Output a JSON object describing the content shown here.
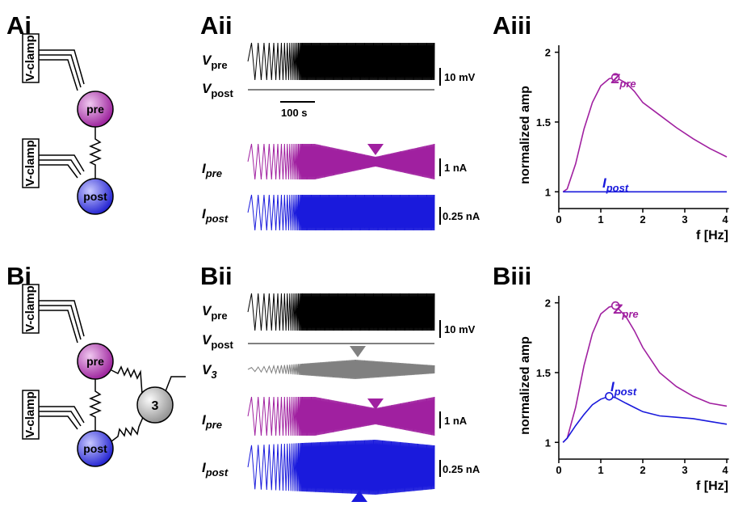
{
  "panel_labels": [
    "Ai",
    "Aii",
    "Aiii",
    "Bi",
    "Bii",
    "Biii"
  ],
  "diagram_a": {
    "clamps": [
      "V-clamp",
      "V-clamp"
    ],
    "cells": [
      "pre",
      "post"
    ]
  },
  "diagram_b": {
    "clamps": [
      "V-clamp",
      "V-clamp"
    ],
    "cells": [
      "pre",
      "post",
      "3"
    ]
  },
  "traces_a": {
    "labels": [
      {
        "symbol": "V",
        "sub": "pre"
      },
      {
        "symbol": "V",
        "sub": "post"
      },
      {
        "symbol": "I",
        "sub": "pre"
      },
      {
        "symbol": "I",
        "sub": "post"
      }
    ],
    "scale_bars": [
      "10 mV",
      "100 s",
      "1 nA",
      "0.25 nA"
    ]
  },
  "traces_b": {
    "labels": [
      {
        "symbol": "V",
        "sub": "pre"
      },
      {
        "symbol": "V",
        "sub": "post"
      },
      {
        "symbol": "V",
        "sub": "3"
      },
      {
        "symbol": "I",
        "sub": "pre"
      },
      {
        "symbol": "I",
        "sub": "post"
      }
    ],
    "scale_bars": [
      "10 mV",
      "1 nA",
      "0.25 nA"
    ]
  },
  "chart_data": [
    {
      "type": "line",
      "ylabel": "normalized amp",
      "xlabel": "f [Hz]",
      "x": [
        0.1,
        0.2,
        0.4,
        0.6,
        0.8,
        1.0,
        1.2,
        1.35,
        1.6,
        1.8,
        2.0,
        2.4,
        2.8,
        3.2,
        3.6,
        4.0
      ],
      "series": [
        {
          "name": "Z",
          "subscript": "pre",
          "color": "#a020a0",
          "values": [
            1,
            1.02,
            1.2,
            1.45,
            1.64,
            1.76,
            1.81,
            1.82,
            1.78,
            1.72,
            1.64,
            1.55,
            1.46,
            1.38,
            1.31,
            1.25
          ],
          "peak_index": 7
        },
        {
          "name": "I",
          "subscript": "post",
          "color": "#1a1adc",
          "values": [
            1,
            1,
            1,
            1,
            1,
            1,
            1,
            1,
            1,
            1,
            1,
            1,
            1,
            1,
            1,
            1
          ]
        }
      ],
      "xlim": [
        0,
        4.05
      ],
      "ylim": [
        0.88,
        2.05
      ],
      "xticks": [
        0,
        1,
        2,
        3,
        4
      ],
      "yticks": [
        1,
        1.5,
        2
      ]
    },
    {
      "type": "line",
      "ylabel": "normalized amp",
      "xlabel": "f [Hz]",
      "x": [
        0.1,
        0.2,
        0.4,
        0.6,
        0.8,
        1.0,
        1.2,
        1.35,
        1.6,
        1.8,
        2.0,
        2.4,
        2.8,
        3.2,
        3.6,
        4.0
      ],
      "series": [
        {
          "name": "Z",
          "subscript": "pre",
          "color": "#a020a0",
          "values": [
            1,
            1.03,
            1.25,
            1.55,
            1.78,
            1.92,
            1.97,
            1.98,
            1.9,
            1.8,
            1.68,
            1.5,
            1.4,
            1.33,
            1.28,
            1.26
          ],
          "peak_index": 7
        },
        {
          "name": "I",
          "subscript": "post",
          "color": "#1a1adc",
          "values": [
            1,
            1.03,
            1.12,
            1.2,
            1.27,
            1.31,
            1.33,
            1.32,
            1.28,
            1.25,
            1.22,
            1.19,
            1.18,
            1.17,
            1.15,
            1.13
          ],
          "peak_index": 6
        }
      ],
      "xlim": [
        0,
        4.05
      ],
      "ylim": [
        0.88,
        2.05
      ],
      "xticks": [
        0,
        1,
        2,
        3,
        4
      ],
      "yticks": [
        1,
        1.5,
        2
      ]
    }
  ]
}
